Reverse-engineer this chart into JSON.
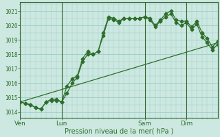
{
  "background_color": "#cce8e0",
  "grid_color": "#99ccc4",
  "line_color": "#2d6e2d",
  "marker": "D",
  "markersize": 2.5,
  "ylabel_ticks": [
    1014,
    1015,
    1016,
    1017,
    1018,
    1019,
    1020,
    1021
  ],
  "ylim": [
    1013.6,
    1021.6
  ],
  "xlabel": "Pression niveau de la mer( hPa )",
  "day_labels": [
    "Ven",
    "Lun",
    "Sam",
    "Dim"
  ],
  "day_positions": [
    0,
    8,
    24,
    32
  ],
  "xlim": [
    0,
    38
  ],
  "series1_x": [
    0,
    1,
    2,
    3,
    4,
    5,
    6,
    7,
    8,
    9,
    10,
    11,
    12,
    13,
    14,
    15,
    16,
    17,
    18,
    19,
    20,
    21,
    22,
    23,
    24,
    25,
    26,
    27,
    28,
    29,
    30,
    31,
    32,
    33,
    34,
    35,
    36,
    37,
    38
  ],
  "series1_y": [
    1014.7,
    1014.6,
    1014.5,
    1014.3,
    1014.2,
    1014.7,
    1014.8,
    1014.8,
    1014.7,
    1015.8,
    1016.3,
    1016.5,
    1017.7,
    1018.2,
    1018.0,
    1018.2,
    1019.5,
    1020.6,
    1020.5,
    1020.3,
    1020.5,
    1020.5,
    1020.5,
    1020.5,
    1020.6,
    1020.5,
    1020.0,
    1020.4,
    1020.8,
    1021.0,
    1020.4,
    1020.3,
    1020.3,
    1019.9,
    1020.3,
    1019.5,
    1019.1,
    1018.5,
    1018.9
  ],
  "series2_x": [
    0,
    1,
    2,
    3,
    4,
    5,
    6,
    7,
    8,
    9,
    10,
    11,
    12,
    13,
    14,
    15,
    16,
    17,
    18,
    19,
    20,
    21,
    22,
    23,
    24,
    25,
    26,
    27,
    28,
    29,
    30,
    31,
    32,
    33,
    34,
    35,
    36,
    37,
    38
  ],
  "series2_y": [
    1014.7,
    1014.6,
    1014.5,
    1014.3,
    1014.2,
    1014.7,
    1014.9,
    1014.9,
    1014.7,
    1015.3,
    1016.0,
    1016.4,
    1017.5,
    1018.0,
    1018.0,
    1018.2,
    1019.3,
    1020.5,
    1020.4,
    1020.2,
    1020.5,
    1020.5,
    1020.5,
    1020.5,
    1020.6,
    1020.4,
    1019.9,
    1020.3,
    1020.6,
    1020.8,
    1020.2,
    1020.0,
    1020.2,
    1019.7,
    1020.1,
    1019.2,
    1018.8,
    1018.3,
    1018.7
  ],
  "series3_x": [
    0,
    38
  ],
  "series3_y": [
    1014.7,
    1018.8
  ],
  "figsize": [
    3.2,
    2.0
  ],
  "dpi": 100
}
